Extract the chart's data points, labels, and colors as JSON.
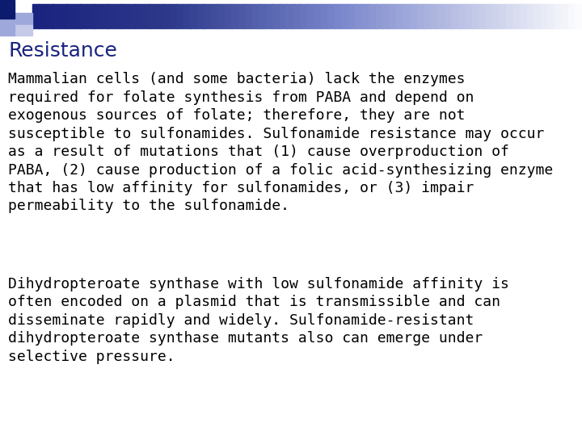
{
  "title": "Resistance",
  "title_color": "#1a237e",
  "bg_color": "#ffffff",
  "body_text_1": "Mammalian cells (and some bacteria) lack the enzymes\nrequired for folate synthesis from PABA and depend on\nexogenous sources of folate; therefore, they are not\nsusceptible to sulfonamides. Sulfonamide resistance may occur\nas a result of mutations that (1) cause overproduction of\nPABA, (2) cause production of a folic acid-synthesizing enzyme\nthat has low affinity for sulfonamides, or (3) impair\npermeability to the sulfonamide.",
  "body_text_2": "Dihydropteroate synthase with low sulfonamide affinity is\noften encoded on a plasmid that is transmissible and can\ndisseminate rapidly and widely. Sulfonamide-resistant\ndihydropteroate synthase mutants also can emerge under\nselective pressure.",
  "body_color": "#000000",
  "font_size_title": 18,
  "font_size_body": 13.0,
  "small_sq_dark": "#0d1b6e",
  "small_sq_light": "#9fa8da",
  "sq_gray": "#c5cae9"
}
